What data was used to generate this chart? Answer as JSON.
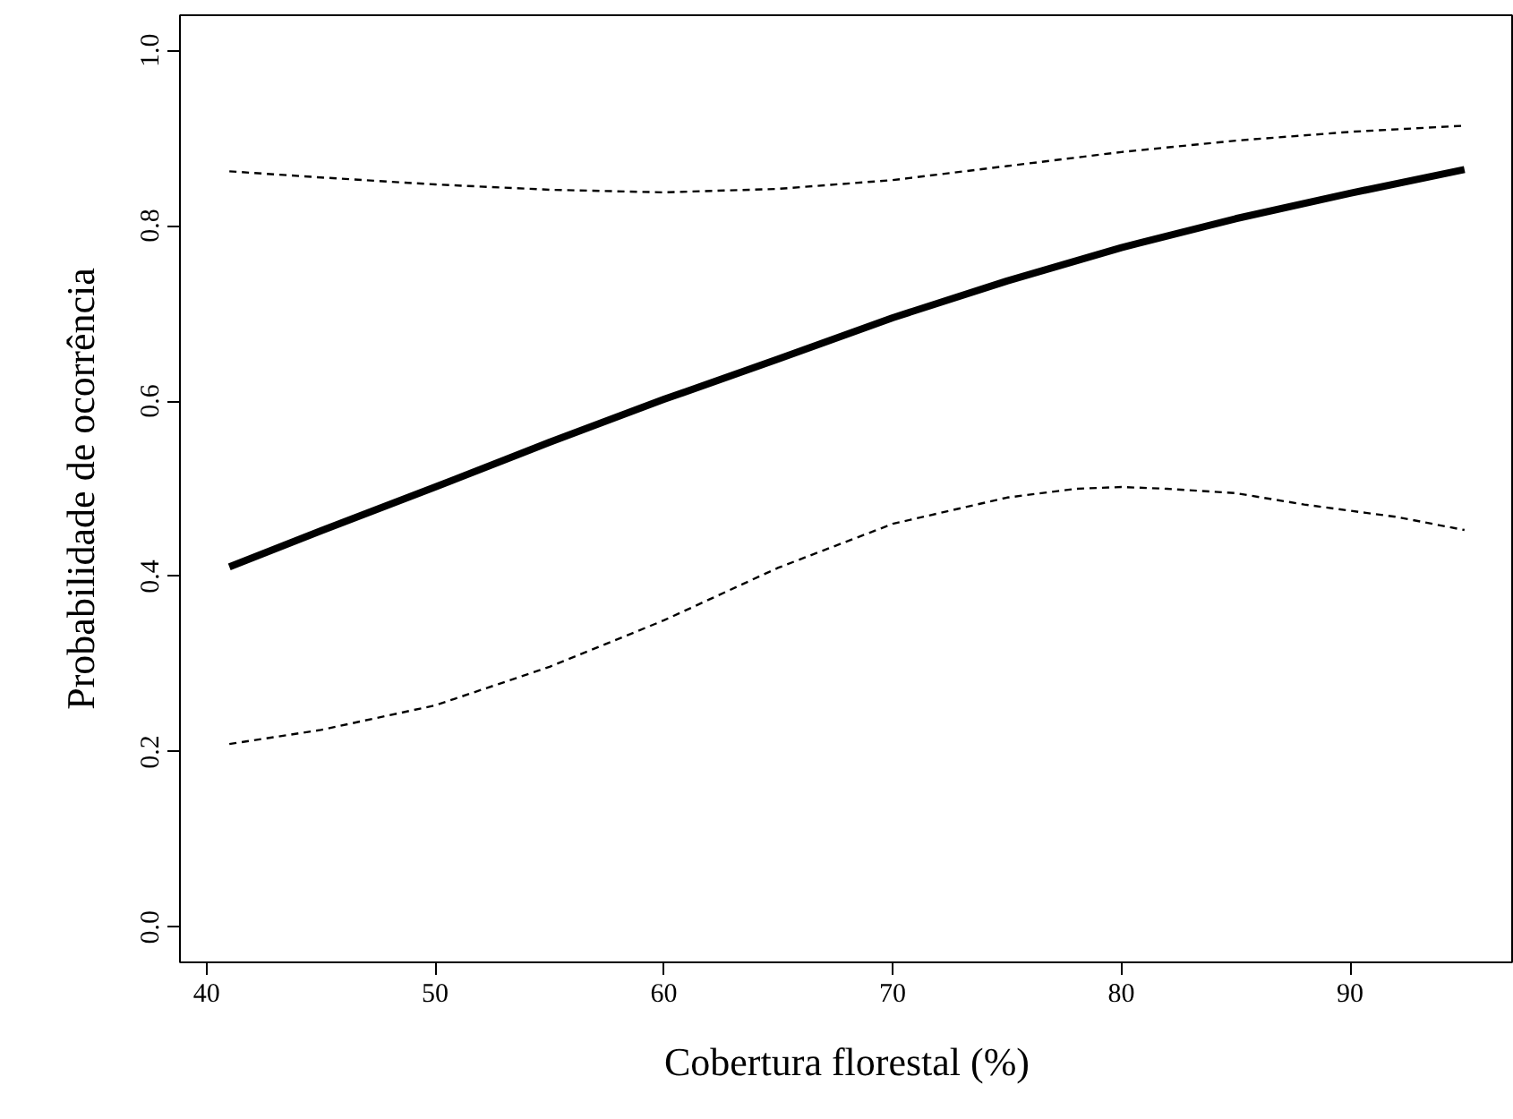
{
  "chart_data": {
    "type": "line",
    "xlabel": "Cobertura florestal (%)",
    "ylabel": "Probabilidade de ocorrência",
    "xlim": [
      38.84,
      97.16
    ],
    "ylim": [
      -0.04,
      1.04
    ],
    "xticks": [
      40,
      50,
      60,
      70,
      80,
      90
    ],
    "yticks": [
      {
        "value": 0,
        "label": "0.0"
      },
      {
        "value": 0.2,
        "label": "0.2"
      },
      {
        "value": 0.4,
        "label": "0.4"
      },
      {
        "value": 0.6,
        "label": "0.6"
      },
      {
        "value": 0.8,
        "label": "0.8"
      },
      {
        "value": 1,
        "label": "1.0"
      }
    ],
    "grid": false,
    "series": [
      {
        "color": "#000000",
        "line_style": "solid",
        "x": [
          41,
          45,
          50,
          55,
          60,
          65,
          70,
          75,
          80,
          85,
          90,
          95
        ],
        "values": [
          0.411,
          0.452,
          0.502,
          0.553,
          0.602,
          0.648,
          0.695,
          0.737,
          0.775,
          0.808,
          0.837,
          0.864
        ]
      },
      {
        "color": "#000000",
        "line_style": "dashed",
        "x": [
          41,
          45,
          50,
          55,
          60,
          65,
          70,
          75,
          80,
          85,
          90,
          95
        ],
        "values": [
          0.862,
          0.855,
          0.847,
          0.841,
          0.838,
          0.842,
          0.852,
          0.868,
          0.884,
          0.897,
          0.907,
          0.914
        ]
      },
      {
        "color": "#000000",
        "line_style": "dashed",
        "x": [
          41,
          45,
          50,
          55,
          60,
          65,
          70,
          75,
          78,
          80,
          82,
          85,
          88,
          92,
          95
        ],
        "values": [
          0.209,
          0.225,
          0.253,
          0.297,
          0.35,
          0.41,
          0.46,
          0.49,
          0.5,
          0.502,
          0.5,
          0.495,
          0.482,
          0.468,
          0.453
        ]
      }
    ]
  }
}
